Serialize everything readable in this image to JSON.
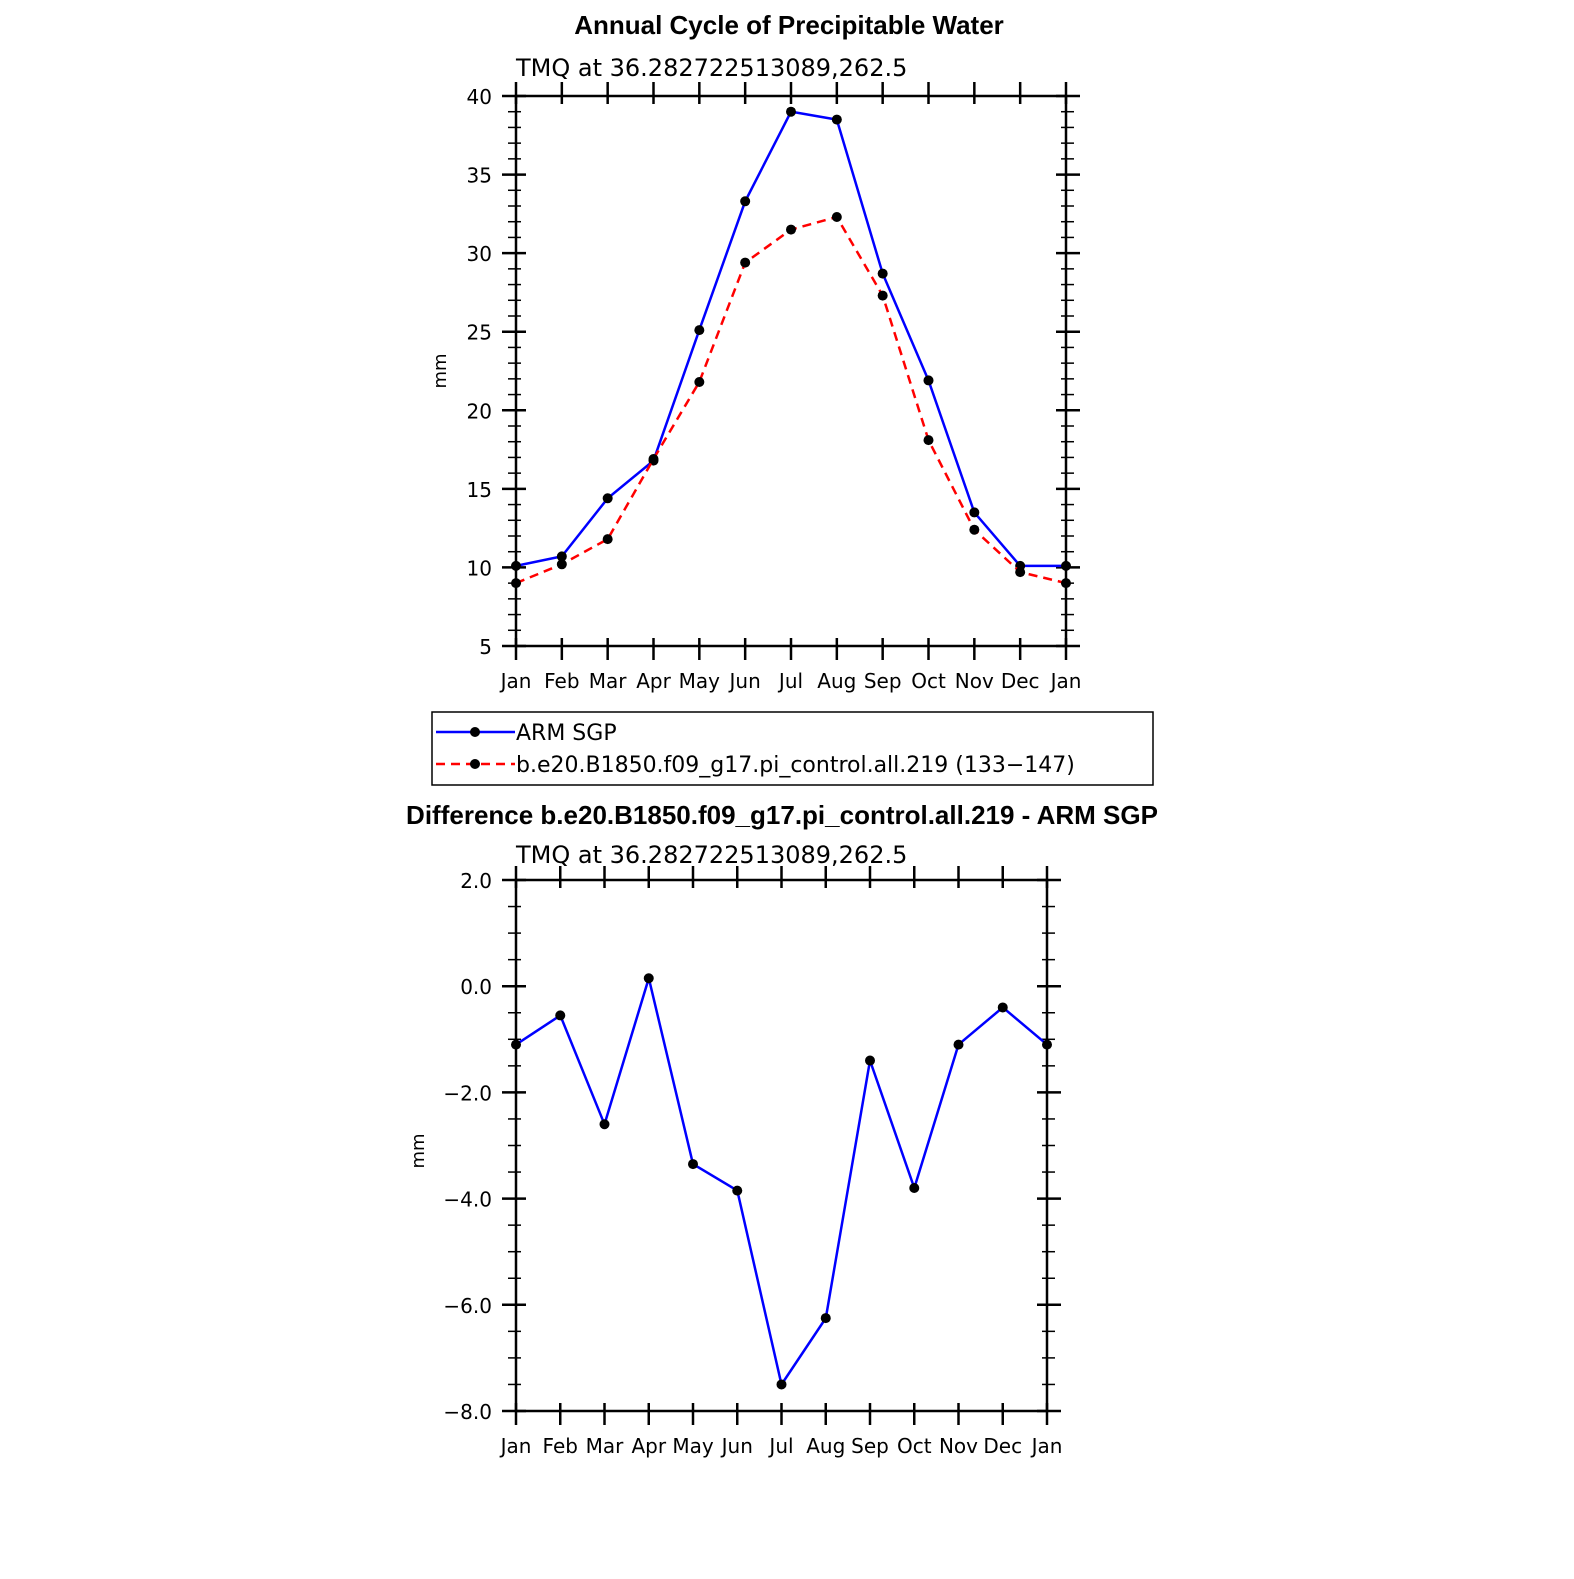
{
  "chart_data": [
    {
      "type": "line",
      "title": "Annual Cycle of Precipitable Water",
      "subtitle": "TMQ at 36.282722513089,262.5",
      "ylabel": "mm",
      "xlabel": "",
      "categories": [
        "Jan",
        "Feb",
        "Mar",
        "Apr",
        "May",
        "Jun",
        "Jul",
        "Aug",
        "Sep",
        "Oct",
        "Nov",
        "Dec",
        "Jan"
      ],
      "ylim": [
        5,
        40
      ],
      "yticks": [
        "5",
        "10",
        "15",
        "20",
        "25",
        "30",
        "35",
        "40"
      ],
      "yticks_values": [
        5,
        10,
        15,
        20,
        25,
        30,
        35,
        40
      ],
      "grid": false,
      "legend_placement": "bottom",
      "series": [
        {
          "name": "ARM SGP",
          "color": "#0000ff",
          "dash": "solid",
          "values": [
            10.1,
            10.7,
            14.4,
            16.8,
            25.1,
            33.3,
            39.0,
            38.5,
            28.7,
            21.9,
            13.5,
            10.1,
            10.1
          ]
        },
        {
          "name": "b.e20.B1850.f09_g17.pi_control.all.219 (133−147)",
          "color": "#ff0000",
          "dash": "dashed",
          "values": [
            9.0,
            10.2,
            11.8,
            16.9,
            21.8,
            29.4,
            31.5,
            32.3,
            27.3,
            18.1,
            12.4,
            9.7,
            9.0
          ]
        }
      ]
    },
    {
      "type": "line",
      "title": "Difference b.e20.B1850.f09_g17.pi_control.all.219 - ARM SGP",
      "subtitle": "TMQ at 36.282722513089,262.5",
      "ylabel": "mm",
      "xlabel": "",
      "categories": [
        "Jan",
        "Feb",
        "Mar",
        "Apr",
        "May",
        "Jun",
        "Jul",
        "Aug",
        "Sep",
        "Oct",
        "Nov",
        "Dec",
        "Jan"
      ],
      "ylim": [
        -8.0,
        2.0
      ],
      "yticks": [
        "−8.0",
        "−6.0",
        "−4.0",
        "−2.0",
        "0.0",
        "2.0"
      ],
      "yticks_values": [
        -8,
        -6,
        -4,
        -2,
        0,
        2
      ],
      "grid": false,
      "series": [
        {
          "color": "#0000ff",
          "dash": "solid",
          "values": [
            -1.1,
            -0.55,
            -2.6,
            0.15,
            -3.35,
            -3.85,
            -7.5,
            -6.25,
            -1.4,
            -3.8,
            -1.1,
            -0.4,
            -1.1
          ]
        }
      ]
    }
  ]
}
